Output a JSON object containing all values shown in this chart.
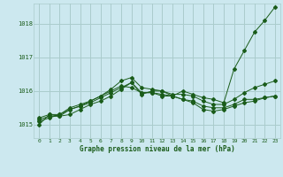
{
  "title": "Graphe pression niveau de la mer (hPa)",
  "background_color": "#cce8ef",
  "grid_color": "#aacccc",
  "line_color": "#1a5c1a",
  "xlim": [
    -0.5,
    23.5
  ],
  "ylim": [
    1014.6,
    1018.6
  ],
  "yticks": [
    1015,
    1016,
    1017,
    1018
  ],
  "xticks": [
    0,
    1,
    2,
    3,
    4,
    5,
    6,
    7,
    8,
    9,
    10,
    11,
    12,
    13,
    14,
    15,
    16,
    17,
    18,
    19,
    20,
    21,
    22,
    23
  ],
  "series": [
    [
      1015.0,
      1015.3,
      1015.25,
      1015.3,
      1015.45,
      1015.6,
      1015.7,
      1015.85,
      1016.05,
      1016.25,
      1015.9,
      1016.0,
      1016.0,
      1015.85,
      1016.0,
      1015.9,
      1015.8,
      1015.75,
      1015.65,
      1016.65,
      1017.2,
      1017.75,
      1018.1,
      1018.5
    ],
    [
      1015.2,
      1015.3,
      1015.3,
      1015.5,
      1015.6,
      1015.7,
      1015.85,
      1016.0,
      1016.15,
      1016.1,
      1015.95,
      1015.95,
      1015.85,
      1015.85,
      1015.75,
      1015.7,
      1015.55,
      1015.5,
      1015.5,
      1015.6,
      1015.75,
      1015.75,
      1015.8,
      1015.85
    ],
    [
      1015.15,
      1015.25,
      1015.25,
      1015.45,
      1015.55,
      1015.65,
      1015.8,
      1015.95,
      1016.1,
      1016.25,
      1015.95,
      1015.95,
      1015.9,
      1015.85,
      1015.75,
      1015.65,
      1015.45,
      1015.4,
      1015.45,
      1015.55,
      1015.65,
      1015.7,
      1015.8,
      1015.85
    ],
    [
      1015.1,
      1015.2,
      1015.3,
      1015.45,
      1015.55,
      1015.7,
      1015.85,
      1016.05,
      1016.3,
      1016.4,
      1016.1,
      1016.05,
      1016.0,
      1015.9,
      1015.9,
      1015.85,
      1015.7,
      1015.6,
      1015.6,
      1015.75,
      1015.95,
      1016.1,
      1016.2,
      1016.3
    ]
  ]
}
